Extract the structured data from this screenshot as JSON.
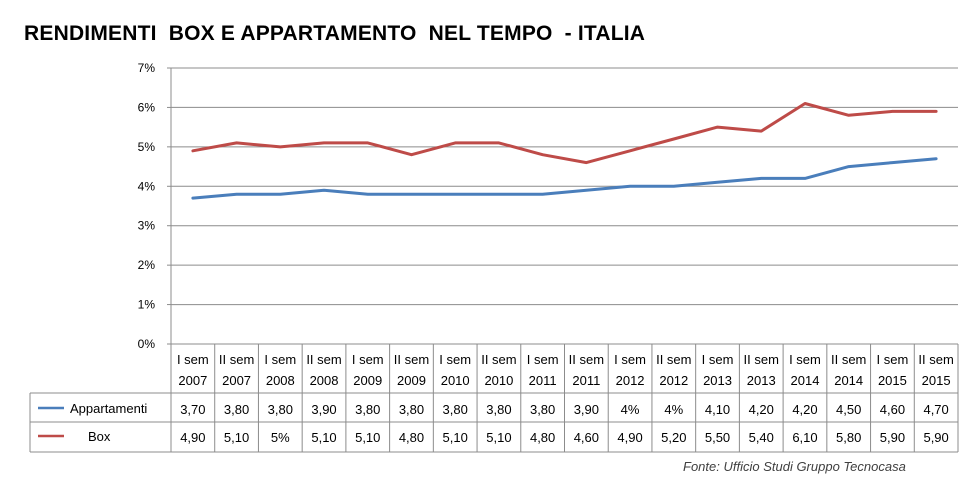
{
  "chart_data": {
    "type": "line",
    "title": "RENDIMENTI  BOX E APPARTAMENTO  NEL TEMPO  - ITALIA",
    "source": "Fonte: Ufficio Studi Gruppo Tecnocasa",
    "yticks": [
      "0%",
      "1%",
      "2%",
      "3%",
      "4%",
      "5%",
      "6%",
      "7%"
    ],
    "ylim": [
      0,
      7
    ],
    "categories": [
      {
        "sem": "I sem",
        "year": "2007"
      },
      {
        "sem": "II sem",
        "year": "2007"
      },
      {
        "sem": "I sem",
        "year": "2008"
      },
      {
        "sem": "II sem",
        "year": "2008"
      },
      {
        "sem": "I sem",
        "year": "2009"
      },
      {
        "sem": "II sem",
        "year": "2009"
      },
      {
        "sem": "I sem",
        "year": "2010"
      },
      {
        "sem": "II sem",
        "year": "2010"
      },
      {
        "sem": "I sem",
        "year": "2011"
      },
      {
        "sem": "II sem",
        "year": "2011"
      },
      {
        "sem": "I sem",
        "year": "2012"
      },
      {
        "sem": "II sem",
        "year": "2012"
      },
      {
        "sem": "I sem",
        "year": "2013"
      },
      {
        "sem": "II sem",
        "year": "2013"
      },
      {
        "sem": "I sem",
        "year": "2014"
      },
      {
        "sem": "II sem",
        "year": "2014"
      },
      {
        "sem": "I sem",
        "year": "2015"
      },
      {
        "sem": "II sem",
        "year": "2015"
      }
    ],
    "series": [
      {
        "name": "Appartamenti",
        "color": "#4a7ebb",
        "values": [
          3.7,
          3.8,
          3.8,
          3.9,
          3.8,
          3.8,
          3.8,
          3.8,
          3.8,
          3.9,
          4.0,
          4.0,
          4.1,
          4.2,
          4.2,
          4.5,
          4.6,
          4.7
        ],
        "labels": [
          "3,70",
          "3,80",
          "3,80",
          "3,90",
          "3,80",
          "3,80",
          "3,80",
          "3,80",
          "3,80",
          "3,90",
          "4%",
          "4%",
          "4,10",
          "4,20",
          "4,20",
          "4,50",
          "4,60",
          "4,70"
        ]
      },
      {
        "name": "Box",
        "color": "#be4b48",
        "values": [
          4.9,
          5.1,
          5.0,
          5.1,
          5.1,
          4.8,
          5.1,
          5.1,
          4.8,
          4.6,
          4.9,
          5.2,
          5.5,
          5.4,
          6.1,
          5.8,
          5.9,
          5.9
        ],
        "labels": [
          "4,90",
          "5,10",
          "5%",
          "5,10",
          "5,10",
          "4,80",
          "5,10",
          "5,10",
          "4,80",
          "4,60",
          "4,90",
          "5,20",
          "5,50",
          "5,40",
          "6,10",
          "5,80",
          "5,90",
          "5,90"
        ]
      }
    ]
  }
}
